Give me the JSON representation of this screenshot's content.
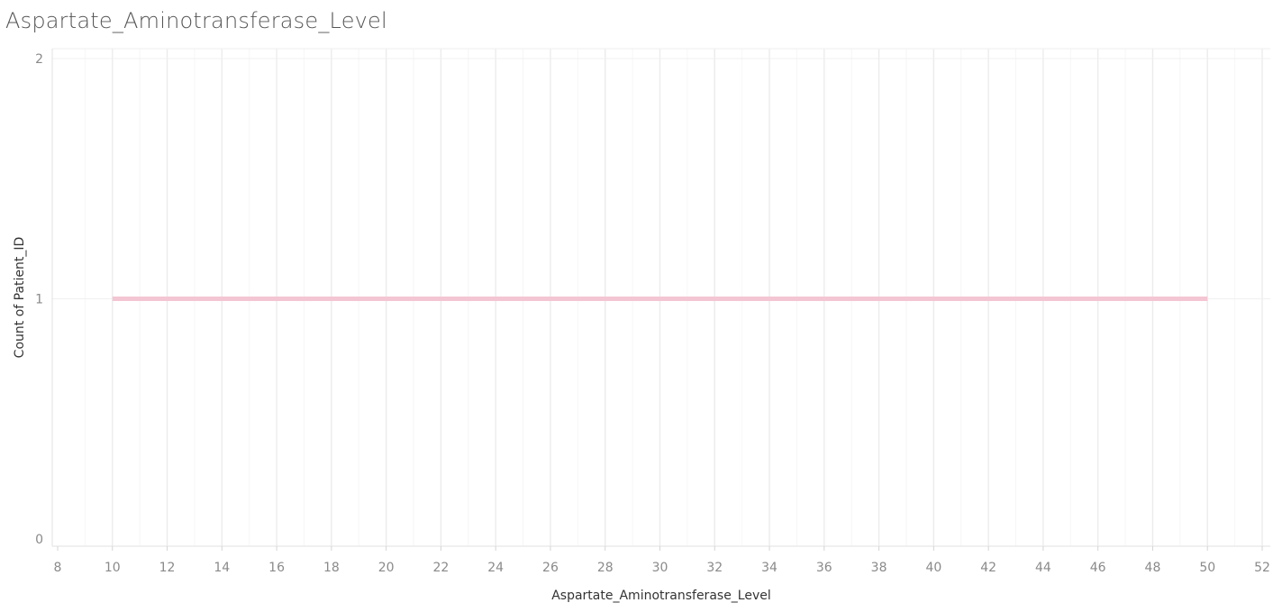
{
  "chart_data": {
    "type": "line",
    "title": "Aspartate_Aminotransferase_Level",
    "xlabel": "Aspartate_Aminotransferase_Level",
    "ylabel": "Count of Patient_ID",
    "x_ticks": [
      8,
      10,
      12,
      14,
      16,
      18,
      20,
      22,
      24,
      26,
      28,
      30,
      32,
      34,
      36,
      38,
      40,
      42,
      44,
      46,
      48,
      50,
      52
    ],
    "y_ticks": [
      0,
      1,
      2
    ],
    "xlim": [
      8,
      52
    ],
    "ylim": [
      0,
      2
    ],
    "grid": true,
    "series": [
      {
        "color": "#f4c6d4",
        "x": [
          10,
          12,
          20,
          26,
          34,
          40,
          48,
          50
        ],
        "y": [
          1,
          1,
          1,
          1,
          1,
          1,
          1,
          1
        ]
      }
    ]
  }
}
